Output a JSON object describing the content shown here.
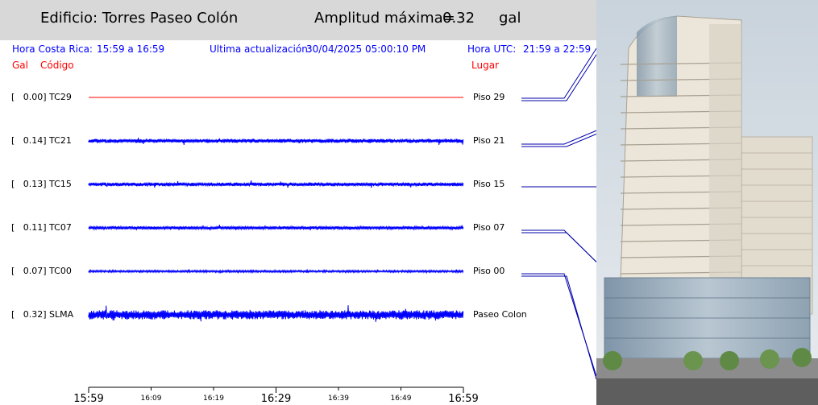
{
  "header": {
    "building_label": "Edificio: Torres Paseo Colón",
    "amplitude_label": "Amplitud máxima=",
    "amplitude_value": "0.32",
    "amplitude_unit": "gal"
  },
  "info": {
    "local_label": "Hora Costa Rica:",
    "local_range": "15:59 a 16:59",
    "update_label": "Ultima actualización:",
    "update_value": "30/04/2025 05:00:10 PM",
    "utc_label": "Hora UTC:",
    "utc_range": "21:59 a 22:59"
  },
  "columns": {
    "gal": "Gal",
    "code": "Código",
    "place": "Lugar"
  },
  "channels": [
    {
      "label": "[   0.00] TC29",
      "place": "Piso 29",
      "amplitude": 0.0
    },
    {
      "label": "[   0.14] TC21",
      "place": "Piso 21",
      "amplitude": 0.14
    },
    {
      "label": "[   0.13] TC15",
      "place": "Piso 15",
      "amplitude": 0.13
    },
    {
      "label": "[   0.11] TC07",
      "place": "Piso 07",
      "amplitude": 0.11
    },
    {
      "label": "[   0.07] TC00",
      "place": "Piso 00",
      "amplitude": 0.07
    },
    {
      "label": "[   0.32] SLMA",
      "place": "Paseo Colon",
      "amplitude": 0.32
    }
  ],
  "time_axis": {
    "major": [
      "15:59",
      "16:29",
      "16:59"
    ],
    "minor": [
      "16:09",
      "16:19",
      "16:39",
      "16:49"
    ]
  },
  "colors": {
    "trace": "#0000ff",
    "flat_trace": "#ff0000",
    "header_bg": "#d8d8d8"
  }
}
